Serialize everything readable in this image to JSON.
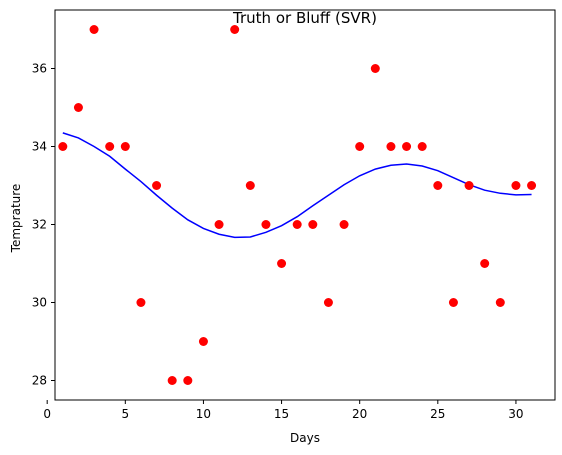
{
  "chart_data": {
    "type": "scatter",
    "title": "Truth or Bluff (SVR)",
    "xlabel": "Days",
    "ylabel": "Temprature",
    "xlim": [
      0.5,
      32.5
    ],
    "ylim": [
      27.5,
      37.5
    ],
    "x_ticks": [
      0,
      5,
      10,
      15,
      20,
      25,
      30
    ],
    "y_ticks": [
      28,
      30,
      32,
      34,
      36
    ],
    "x_tick_labels": [
      "0",
      "5",
      "10",
      "15",
      "20",
      "25",
      "30"
    ],
    "y_tick_labels": [
      "28",
      "30",
      "32",
      "34",
      "36"
    ],
    "grid": false,
    "legend": "none",
    "series": [
      {
        "kind": "scatter",
        "color": "#ff0000",
        "points": [
          [
            1,
            34
          ],
          [
            2,
            35
          ],
          [
            3,
            37
          ],
          [
            4,
            34
          ],
          [
            5,
            34
          ],
          [
            6,
            30
          ],
          [
            7,
            33
          ],
          [
            8,
            28
          ],
          [
            9,
            28
          ],
          [
            10,
            29
          ],
          [
            11,
            32
          ],
          [
            12,
            37
          ],
          [
            13,
            33
          ],
          [
            14,
            32
          ],
          [
            15,
            31
          ],
          [
            16,
            32
          ],
          [
            17,
            32
          ],
          [
            18,
            30
          ],
          [
            19,
            32
          ],
          [
            20,
            34
          ],
          [
            21,
            36
          ],
          [
            22,
            34
          ],
          [
            23,
            34
          ],
          [
            24,
            34
          ],
          [
            25,
            33
          ],
          [
            26,
            30
          ],
          [
            27,
            33
          ],
          [
            28,
            31
          ],
          [
            29,
            30
          ],
          [
            30,
            33
          ],
          [
            31,
            33
          ]
        ]
      },
      {
        "kind": "line",
        "color": "#0000ff",
        "points": [
          [
            1,
            34.35
          ],
          [
            2,
            34.22
          ],
          [
            3,
            34.0
          ],
          [
            4,
            33.75
          ],
          [
            5,
            33.42
          ],
          [
            6,
            33.1
          ],
          [
            7,
            32.75
          ],
          [
            8,
            32.42
          ],
          [
            9,
            32.12
          ],
          [
            10,
            31.9
          ],
          [
            11,
            31.75
          ],
          [
            12,
            31.67
          ],
          [
            13,
            31.68
          ],
          [
            14,
            31.8
          ],
          [
            15,
            31.97
          ],
          [
            16,
            32.2
          ],
          [
            17,
            32.48
          ],
          [
            18,
            32.75
          ],
          [
            19,
            33.02
          ],
          [
            20,
            33.25
          ],
          [
            21,
            33.42
          ],
          [
            22,
            33.52
          ],
          [
            23,
            33.55
          ],
          [
            24,
            33.5
          ],
          [
            25,
            33.38
          ],
          [
            26,
            33.2
          ],
          [
            27,
            33.02
          ],
          [
            28,
            32.88
          ],
          [
            29,
            32.8
          ],
          [
            30,
            32.76
          ],
          [
            31,
            32.77
          ]
        ]
      }
    ]
  }
}
